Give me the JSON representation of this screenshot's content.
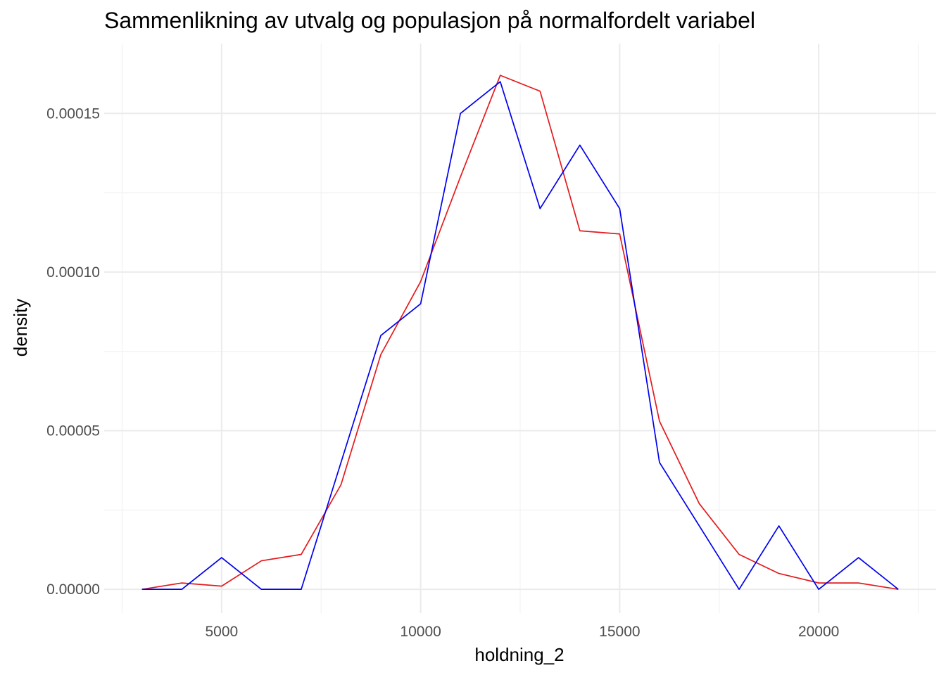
{
  "chart_data": {
    "type": "line",
    "title": "Sammenlikning av utvalg og populasjon på normalfordelt variabel",
    "xlabel": "holdning_2",
    "ylabel": "density",
    "xlim": [
      2050,
      22950
    ],
    "ylim": [
      -7.5e-06,
      0.000172
    ],
    "x_ticks": [
      5000,
      10000,
      15000,
      20000
    ],
    "x_tick_labels": [
      "5000",
      "10000",
      "15000",
      "20000"
    ],
    "y_ticks": [
      0,
      5e-05,
      0.0001,
      0.00015
    ],
    "y_tick_labels": [
      "0.00000",
      "0.00005",
      "0.00010",
      "0.00015"
    ],
    "grid": true,
    "legend": "none",
    "series": [
      {
        "color": "#e41a1c",
        "x": [
          3000,
          4000,
          5000,
          6000,
          7000,
          8000,
          9000,
          10000,
          11000,
          12000,
          13000,
          14000,
          15000,
          16000,
          17000,
          18000,
          19000,
          20000,
          21000,
          22000
        ],
        "y": [
          0.0,
          2e-06,
          1e-06,
          9e-06,
          1.1e-05,
          3.3e-05,
          7.4e-05,
          9.7e-05,
          0.00013,
          0.000162,
          0.000157,
          0.000113,
          0.000112,
          5.3e-05,
          2.7e-05,
          1.1e-05,
          5e-06,
          2e-06,
          2e-06,
          0.0
        ]
      },
      {
        "color": "#0000ee",
        "x": [
          3000,
          4000,
          5000,
          6000,
          7000,
          8000,
          9000,
          10000,
          11000,
          12000,
          13000,
          14000,
          15000,
          16000,
          17000,
          18000,
          19000,
          20000,
          21000,
          22000
        ],
        "y": [
          0.0,
          0.0,
          1e-05,
          0.0,
          0.0,
          4e-05,
          8e-05,
          9e-05,
          0.00015,
          0.00016,
          0.00012,
          0.00014,
          0.00012,
          4e-05,
          2e-05,
          0.0,
          2e-05,
          0.0,
          1e-05,
          0.0
        ]
      }
    ]
  }
}
